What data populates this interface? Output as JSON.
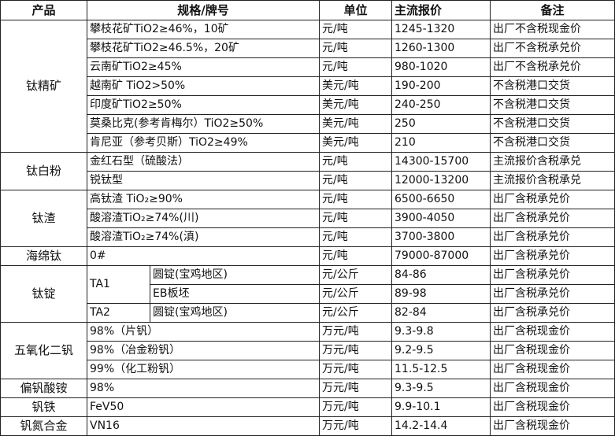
{
  "header": {
    "product": "产品",
    "spec": "规格/牌号",
    "unit": "单位",
    "price": "主流报价",
    "note": "备注"
  },
  "groups": [
    {
      "product": "钛精矿",
      "rows": [
        {
          "spec": "攀枝花矿TiO2≥46%，10矿",
          "unit": "元/吨",
          "price": "1245-1320",
          "note": "出厂不含税现金价"
        },
        {
          "spec": "攀枝花矿TiO2≥46.5%，20矿",
          "unit": "元/吨",
          "price": "1260-1300",
          "note": "出厂不含税承兑价"
        },
        {
          "spec": "云南矿TiO2≥45%",
          "unit": "元/吨",
          "price": "980-1020",
          "note": "出厂不含税承兑价"
        },
        {
          "spec": "越南矿 TiO2>50%",
          "unit": "美元/吨",
          "price": "190-200",
          "note": "不含税港口交货"
        },
        {
          "spec": "印度矿TiO2≥50%",
          "unit": "美元/吨",
          "price": "240-250",
          "note": "不含税港口交货"
        },
        {
          "spec": "莫桑比克(参考肯梅尔）TiO2≥50%",
          "unit": "美元/吨",
          "price": "250",
          "note": "不含税港口交货"
        },
        {
          "spec": "肯尼亚（参考贝斯）TiO2≥49%",
          "unit": "美元/吨",
          "price": "210",
          "note": "不含税港口交货"
        }
      ]
    },
    {
      "product": "钛白粉",
      "rows": [
        {
          "spec": "金红石型（硫酸法）",
          "unit": "元/吨",
          "price": "14300-15700",
          "note": "主流报价含税承兑"
        },
        {
          "spec": "锐钛型",
          "unit": "元/吨",
          "price": "12000-13200",
          "note": "主流报价含税承兑"
        }
      ]
    },
    {
      "product": "钛渣",
      "rows": [
        {
          "spec": "高钛渣 TiO₂≥90%",
          "unit": "元/吨",
          "price": "6500-6650",
          "note": "出厂含税承兑价"
        },
        {
          "spec": "酸溶渣TiO₂≥74%(川)",
          "unit": "元/吨",
          "price": "3900-4050",
          "note": "出厂含税承兑价"
        },
        {
          "spec": "酸溶渣TiO₂≥74%(滇)",
          "unit": "元/吨",
          "price": "3700-3800",
          "note": "出厂含税承兑价"
        }
      ]
    },
    {
      "product": "海绵钛",
      "rows": [
        {
          "spec": "0#",
          "unit": "元/吨",
          "price": "79000-87000",
          "note": "出厂含税承兑价"
        }
      ]
    },
    {
      "product": "钛锭",
      "rows": [
        {
          "grade": "TA1",
          "grade_span": 2,
          "form": "圆锭(宝鸡地区)",
          "unit": "元/公斤",
          "price": "84-86",
          "note": "出厂含税承兑价"
        },
        {
          "form": "EB板坯",
          "unit": "元/公斤",
          "price": "89-98",
          "note": "出厂含税承兑价"
        },
        {
          "grade": "TA2",
          "grade_span": 1,
          "form": "圆锭(宝鸡地区)",
          "unit": "元/公斤",
          "price": "82-84",
          "note": "出厂含税承兑价"
        }
      ]
    },
    {
      "product": "五氧化二钒",
      "rows": [
        {
          "spec": "98%（片钒）",
          "unit": "万元/吨",
          "price": "9.3-9.8",
          "note": "出厂含税现金价"
        },
        {
          "spec": "98%（冶金粉钒）",
          "unit": "万元/吨",
          "price": "9.2-9.5",
          "note": "出厂含税现金价"
        },
        {
          "spec": "99%（化工粉钒）",
          "unit": "万元/吨",
          "price": "11.5-12.5",
          "note": "出厂含税现金价"
        }
      ]
    },
    {
      "product": "偏钒酸铵",
      "rows": [
        {
          "spec": "98%",
          "unit": "万元/吨",
          "price": "9.3-9.5",
          "note": "出厂含税现金价"
        }
      ]
    },
    {
      "product": "钒铁",
      "rows": [
        {
          "spec": "FeV50",
          "unit": "万元/吨",
          "price": "9.9-10.1",
          "note": "出厂含税现金价"
        }
      ]
    },
    {
      "product": "钒氮合金",
      "rows": [
        {
          "spec": "VN16",
          "unit": "万元/吨",
          "price": "14.2-14.4",
          "note": "出厂含税现金价"
        }
      ]
    }
  ]
}
